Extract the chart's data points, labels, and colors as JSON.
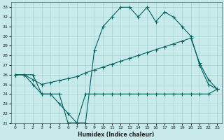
{
  "xlabel": "Humidex (Indice chaleur)",
  "bg_color": "#c8eaea",
  "grid_color": "#99cccc",
  "line_color": "#006060",
  "xlim": [
    -0.5,
    23.5
  ],
  "ylim": [
    21,
    33.5
  ],
  "xticks": [
    0,
    1,
    2,
    3,
    4,
    5,
    6,
    7,
    8,
    9,
    10,
    11,
    12,
    13,
    14,
    15,
    16,
    17,
    18,
    19,
    20,
    21,
    22,
    23
  ],
  "yticks": [
    21,
    22,
    23,
    24,
    25,
    26,
    27,
    28,
    29,
    30,
    31,
    32,
    33
  ],
  "line1_x": [
    0,
    1,
    2,
    3,
    4,
    5,
    6,
    7,
    8,
    9,
    10,
    11,
    12,
    13,
    14,
    15,
    16,
    17,
    18,
    19,
    20,
    21,
    22,
    23
  ],
  "line1_y": [
    26,
    26,
    26,
    24,
    24,
    23,
    22,
    21,
    21,
    28.5,
    31,
    32,
    33,
    33,
    32,
    33,
    31.5,
    32.5,
    32,
    31,
    30,
    27,
    25,
    24.5
  ],
  "line2_x": [
    0,
    1,
    2,
    3,
    4,
    5,
    6,
    7,
    8,
    9,
    10,
    11,
    12,
    13,
    14,
    15,
    16,
    17,
    18,
    19,
    20,
    21,
    22,
    23
  ],
  "line2_y": [
    26,
    26,
    25,
    24,
    24,
    24,
    21,
    21,
    24,
    24,
    24,
    24,
    24,
    24,
    24,
    24,
    24,
    24,
    24,
    24,
    24,
    24,
    24,
    24.5
  ],
  "line3_x": [
    0,
    1,
    2,
    3,
    4,
    5,
    6,
    7,
    8,
    9,
    10,
    11,
    12,
    13,
    14,
    15,
    16,
    17,
    18,
    19,
    20,
    21,
    22,
    23
  ],
  "line3_y": [
    26,
    26,
    25.5,
    25,
    25.2,
    25.4,
    25.6,
    25.8,
    26.2,
    26.5,
    26.8,
    27.1,
    27.4,
    27.7,
    28.0,
    28.3,
    28.6,
    28.9,
    29.2,
    29.5,
    29.8,
    27.2,
    25.5,
    24.5
  ]
}
